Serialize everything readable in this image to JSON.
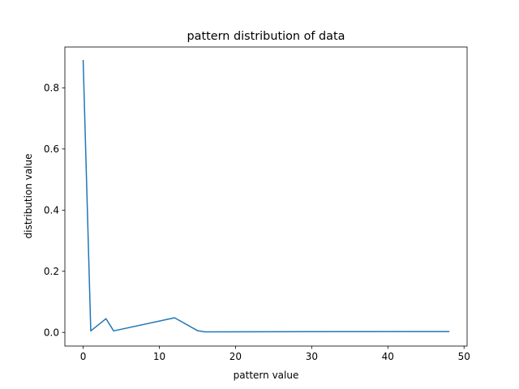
{
  "chart_data": {
    "type": "line",
    "title": "pattern distribution of data",
    "xlabel": "pattern value",
    "ylabel": "distribution value",
    "xlim": [
      -2.4,
      50.4
    ],
    "ylim": [
      -0.0445,
      0.9335
    ],
    "xticks": [
      0,
      10,
      20,
      30,
      40,
      50
    ],
    "xtick_labels": [
      "0",
      "10",
      "20",
      "30",
      "40",
      "50"
    ],
    "yticks": [
      0.0,
      0.2,
      0.4,
      0.6,
      0.8
    ],
    "ytick_labels": [
      "0.0",
      "0.2",
      "0.4",
      "0.6",
      "0.8"
    ],
    "grid": false,
    "series": [
      {
        "color": "#1f77b4",
        "x": [
          0,
          1,
          3,
          4,
          12,
          15,
          16,
          48
        ],
        "y": [
          0.889,
          0.005,
          0.045,
          0.005,
          0.048,
          0.006,
          0.002,
          0.003
        ]
      }
    ]
  }
}
